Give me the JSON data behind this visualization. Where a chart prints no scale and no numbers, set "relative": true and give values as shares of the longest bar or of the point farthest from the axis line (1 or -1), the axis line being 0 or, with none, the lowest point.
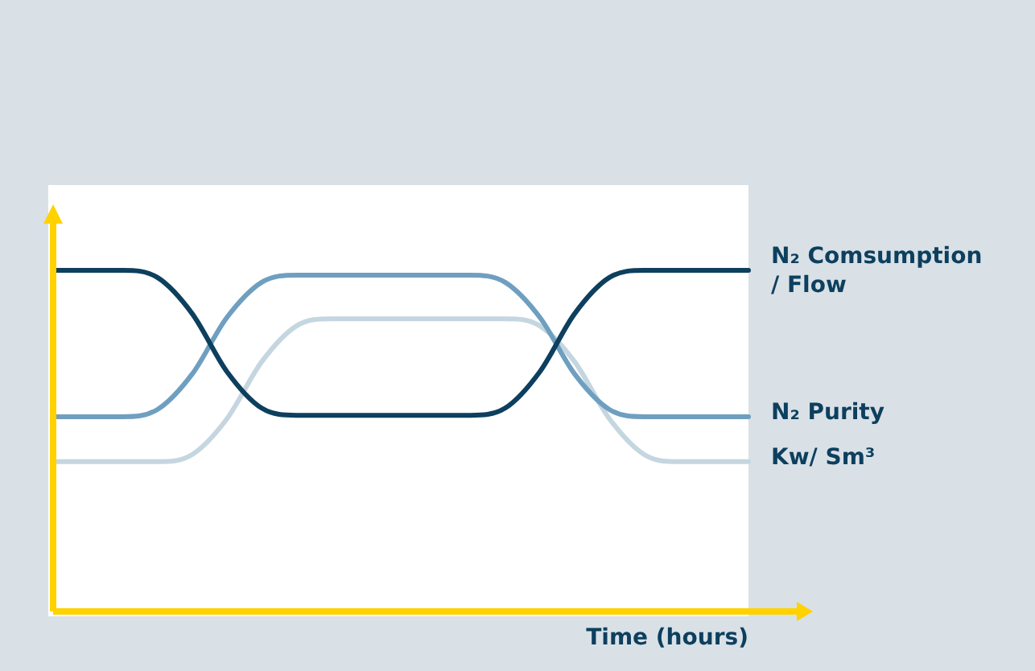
{
  "chart_data": {
    "type": "line",
    "relative": true,
    "tick_labels": false,
    "xlabel": "Time (hours)",
    "categories": [
      null,
      null,
      null,
      null,
      null,
      null,
      null,
      null,
      null,
      null,
      null,
      null,
      null,
      null,
      null,
      null,
      null,
      null,
      null,
      null,
      null
    ],
    "series": [
      {
        "name": "N₂ Comsumption / Flow",
        "color": "#0d3f5e",
        "values": [
          1,
          1,
          1,
          0.979,
          0.873,
          0.703,
          0.596,
          0.575,
          0.575,
          0.575,
          0.575,
          0.575,
          0.575,
          0.596,
          0.703,
          0.873,
          0.979,
          1,
          1,
          1,
          1
        ]
      },
      {
        "name": "N₂ Purity",
        "color": "#6f9fc0",
        "values": [
          0.571,
          0.571,
          0.571,
          0.592,
          0.696,
          0.862,
          0.965,
          0.986,
          0.986,
          0.986,
          0.986,
          0.986,
          0.986,
          0.965,
          0.862,
          0.696,
          0.592,
          0.571,
          0.571,
          0.571,
          0.571
        ]
      },
      {
        "name": "Kw/ Sm³",
        "color": "#c5d6e0",
        "values": [
          0.439,
          0.439,
          0.439,
          0.439,
          0.46,
          0.565,
          0.732,
          0.837,
          0.858,
          0.858,
          0.858,
          0.858,
          0.858,
          0.858,
          0.837,
          0.732,
          0.565,
          0.46,
          0.439,
          0.439,
          0.439
        ]
      }
    ]
  }
}
